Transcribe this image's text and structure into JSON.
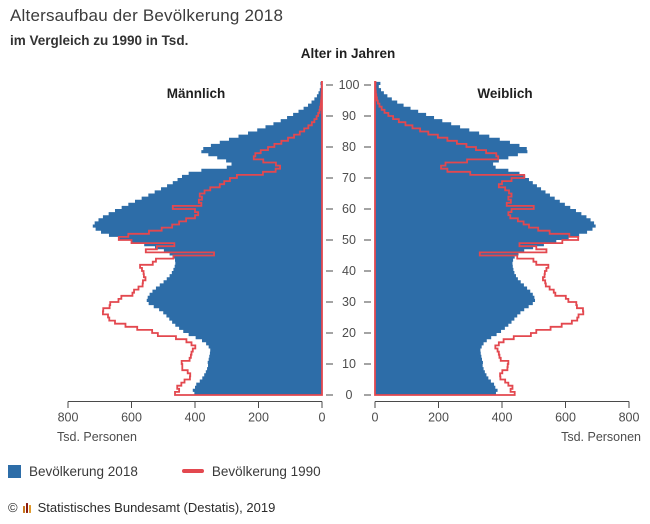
{
  "header": {
    "title": "Altersaufbau der Bevölkerung 2018",
    "subtitle": "im Vergleich zu 1990 in Tsd."
  },
  "legend": {
    "items": [
      {
        "label": "Bevölkerung 2018",
        "color": "#2d6da8",
        "swatch": "square"
      },
      {
        "label": "Bevölkerung 1990",
        "color": "#e3484f",
        "swatch": "line"
      }
    ]
  },
  "footer": {
    "copyright": "©",
    "logo": "destatis-logo-icon",
    "text": "Statistisches Bundesamt (Destatis), 2019"
  },
  "colors": {
    "population_2018": "#2d6da8",
    "population_1990": "#e3484f",
    "axis": "#4a4a4a",
    "tick_label": "#4d4d4d",
    "panel_label": "#1f1f1f"
  },
  "chart_data": {
    "type": "bar",
    "subtype": "population-pyramid",
    "title": "Altersaufbau der Bevölkerung 2018",
    "subtitle": "im Vergleich zu 1990 in Tsd.",
    "age_axis": {
      "label": "Alter in Jahren",
      "min": 0,
      "max": 100,
      "ticks": [
        0,
        10,
        20,
        30,
        40,
        50,
        60,
        70,
        80,
        90,
        100
      ]
    },
    "value_axis": {
      "label": "Tsd. Personen",
      "min": 0,
      "max": 830,
      "ticks": [
        0,
        200,
        400,
        600,
        800
      ]
    },
    "panels": {
      "left": "Männlich",
      "right": "Weiblich"
    },
    "legend_position": "bottom-left",
    "grid": false,
    "note": "array index = age in years (0 to 100+), values in thousands of persons",
    "series": [
      {
        "name": "Bevölkerung 2018",
        "style": "area",
        "color": "#2d6da8",
        "male": [
          402,
          407,
          400,
          396,
          385,
          377,
          371,
          366,
          362,
          359,
          360,
          357,
          355,
          353,
          352,
          357,
          365,
          378,
          398,
          420,
          437,
          450,
          462,
          472,
          481,
          490,
          500,
          513,
          530,
          546,
          552,
          549,
          543,
          534,
          523,
          511,
          499,
          489,
          480,
          473,
          468,
          464,
          462,
          463,
          468,
          480,
          498,
          526,
          560,
          599,
          638,
          671,
          696,
          713,
          722,
          716,
          704,
          690,
          672,
          652,
          631,
          610,
          589,
          568,
          547,
          527,
          507,
          488,
          470,
          455,
          441,
          420,
          380,
          300,
          285,
          302,
          330,
          358,
          380,
          374,
          350,
          322,
          293,
          263,
          233,
          204,
          178,
          153,
          130,
          110,
          91,
          74,
          58,
          44,
          33,
          24,
          16,
          11,
          7,
          4,
          5
        ],
        "female": [
          381,
          386,
          379,
          375,
          365,
          357,
          351,
          346,
          342,
          339,
          340,
          337,
          335,
          333,
          332,
          336,
          342,
          352,
          366,
          383,
          397,
          409,
          420,
          430,
          439,
          448,
          458,
          470,
          484,
          497,
          504,
          502,
          497,
          489,
          479,
          469,
          459,
          450,
          444,
          439,
          436,
          434,
          433,
          435,
          440,
          452,
          470,
          498,
          532,
          571,
          610,
          643,
          668,
          685,
          695,
          690,
          679,
          666,
          650,
          633,
          615,
          598,
          582,
          566,
          551,
          537,
          523,
          510,
          497,
          485,
          473,
          455,
          420,
          380,
          372,
          390,
          420,
          450,
          480,
          478,
          455,
          425,
          393,
          360,
          328,
          297,
          268,
          240,
          212,
          186,
          161,
          136,
          112,
          90,
          70,
          53,
          39,
          28,
          19,
          12,
          17
        ]
      },
      {
        "name": "Bevölkerung 1990",
        "style": "line",
        "color": "#e3484f",
        "male": [
          463,
          450,
          456,
          443,
          433,
          416,
          415,
          423,
          440,
          440,
          442,
          417,
          413,
          411,
          407,
          399,
          411,
          427,
          460,
          517,
          535,
          582,
          619,
          652,
          670,
          674,
          690,
          689,
          669,
          667,
          641,
          632,
          597,
          592,
          578,
          565,
          564,
          556,
          561,
          562,
          567,
          573,
          533,
          523,
          468,
          340,
          555,
          520,
          465,
          600,
          640,
          610,
          545,
          505,
          472,
          450,
          428,
          400,
          390,
          400,
          470,
          380,
          388,
          378,
          385,
          370,
          352,
          322,
          308,
          290,
          268,
          186,
          146,
          132,
          145,
          185,
          215,
          210,
          193,
          170,
          150,
          128,
          107,
          88,
          70,
          56,
          43,
          32,
          24,
          17,
          12,
          8,
          6,
          4,
          3,
          2,
          1.4,
          1,
          0.7,
          0.4,
          0.6
        ],
        "female": [
          440,
          427,
          433,
          420,
          410,
          395,
          394,
          401,
          417,
          418,
          420,
          396,
          392,
          390,
          386,
          379,
          390,
          405,
          437,
          491,
          508,
          553,
          588,
          620,
          637,
          641,
          656,
          655,
          636,
          634,
          609,
          601,
          568,
          563,
          550,
          538,
          536,
          529,
          534,
          535,
          540,
          546,
          508,
          499,
          448,
          330,
          540,
          508,
          455,
          590,
          640,
          612,
          550,
          514,
          485,
          468,
          450,
          426,
          420,
          430,
          500,
          415,
          428,
          420,
          430,
          422,
          410,
          390,
          400,
          430,
          470,
          300,
          228,
          208,
          222,
          290,
          388,
          382,
          350,
          318,
          288,
          258,
          228,
          198,
          168,
          142,
          118,
          96,
          75,
          57,
          42,
          30,
          21,
          14,
          9,
          6,
          4,
          2.5,
          1.5,
          1,
          1.5
        ]
      }
    ]
  }
}
